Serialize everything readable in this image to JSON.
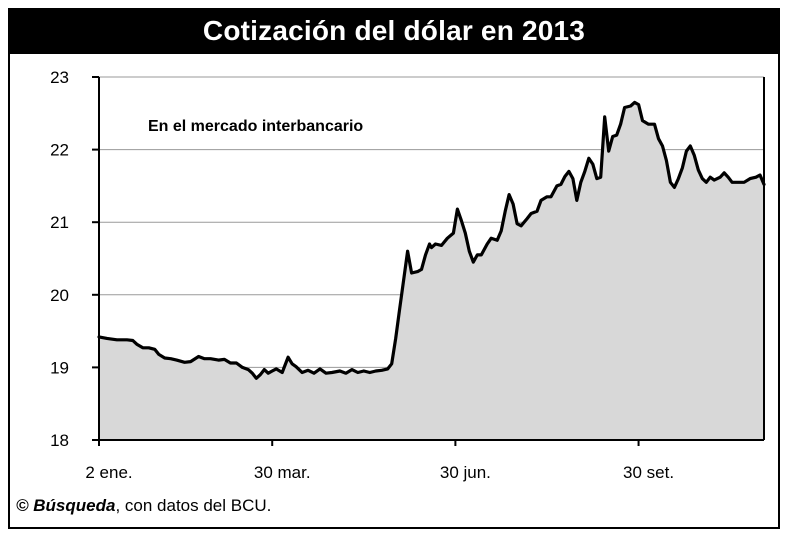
{
  "title": "Cotización del dólar en 2013",
  "annotation": "En el mercado interbancario",
  "credit": {
    "symbol": "©",
    "source": "Búsqueda",
    "rest": ", con datos del BCU."
  },
  "chart_data": {
    "type": "area",
    "title": "Cotización del dólar en 2013",
    "annotation": "En el mercado interbancario",
    "xlabel": "",
    "ylabel": "",
    "ylim": [
      18,
      23
    ],
    "yticks": [
      18,
      19,
      20,
      21,
      22,
      23
    ],
    "xtick_labels": [
      {
        "label": "2 ene.",
        "day": 1
      },
      {
        "label": "30 mar.",
        "day": 88
      },
      {
        "label": "30 jun.",
        "day": 180
      },
      {
        "label": "30 set.",
        "day": 272
      }
    ],
    "xlim": [
      1,
      335
    ],
    "grid": true,
    "fill_color": "#d8d8d8",
    "line_color": "#000000",
    "series": [
      {
        "points": [
          [
            1,
            19.42
          ],
          [
            5,
            19.4
          ],
          [
            10,
            19.38
          ],
          [
            15,
            19.38
          ],
          [
            18,
            19.37
          ],
          [
            20,
            19.32
          ],
          [
            23,
            19.27
          ],
          [
            26,
            19.27
          ],
          [
            29,
            19.25
          ],
          [
            31,
            19.18
          ],
          [
            34,
            19.13
          ],
          [
            37,
            19.12
          ],
          [
            40,
            19.1
          ],
          [
            44,
            19.07
          ],
          [
            47,
            19.08
          ],
          [
            51,
            19.15
          ],
          [
            54,
            19.12
          ],
          [
            57,
            19.12
          ],
          [
            61,
            19.1
          ],
          [
            64,
            19.11
          ],
          [
            67,
            19.06
          ],
          [
            70,
            19.06
          ],
          [
            73,
            19.0
          ],
          [
            76,
            18.97
          ],
          [
            78,
            18.92
          ],
          [
            80,
            18.85
          ],
          [
            82,
            18.9
          ],
          [
            84,
            18.97
          ],
          [
            86,
            18.92
          ],
          [
            88,
            18.95
          ],
          [
            90,
            18.98
          ],
          [
            93,
            18.93
          ],
          [
            96,
            19.14
          ],
          [
            98,
            19.05
          ],
          [
            100,
            19.01
          ],
          [
            103,
            18.93
          ],
          [
            106,
            18.96
          ],
          [
            109,
            18.92
          ],
          [
            112,
            18.98
          ],
          [
            115,
            18.92
          ],
          [
            118,
            18.93
          ],
          [
            122,
            18.95
          ],
          [
            125,
            18.92
          ],
          [
            128,
            18.97
          ],
          [
            131,
            18.93
          ],
          [
            134,
            18.95
          ],
          [
            137,
            18.93
          ],
          [
            140,
            18.95
          ],
          [
            143,
            18.96
          ],
          [
            146,
            18.98
          ],
          [
            148,
            19.05
          ],
          [
            150,
            19.4
          ],
          [
            152,
            19.8
          ],
          [
            154,
            20.2
          ],
          [
            156,
            20.6
          ],
          [
            158,
            20.3
          ],
          [
            161,
            20.32
          ],
          [
            163,
            20.35
          ],
          [
            165,
            20.55
          ],
          [
            167,
            20.7
          ],
          [
            168,
            20.65
          ],
          [
            170,
            20.7
          ],
          [
            173,
            20.68
          ],
          [
            176,
            20.78
          ],
          [
            179,
            20.85
          ],
          [
            181,
            21.18
          ],
          [
            183,
            21.02
          ],
          [
            185,
            20.85
          ],
          [
            187,
            20.6
          ],
          [
            189,
            20.45
          ],
          [
            191,
            20.55
          ],
          [
            193,
            20.55
          ],
          [
            196,
            20.7
          ],
          [
            198,
            20.78
          ],
          [
            201,
            20.75
          ],
          [
            203,
            20.88
          ],
          [
            205,
            21.15
          ],
          [
            207,
            21.38
          ],
          [
            209,
            21.25
          ],
          [
            211,
            20.98
          ],
          [
            213,
            20.95
          ],
          [
            216,
            21.05
          ],
          [
            218,
            21.12
          ],
          [
            221,
            21.15
          ],
          [
            223,
            21.3
          ],
          [
            226,
            21.35
          ],
          [
            228,
            21.35
          ],
          [
            231,
            21.5
          ],
          [
            233,
            21.52
          ],
          [
            235,
            21.63
          ],
          [
            237,
            21.7
          ],
          [
            239,
            21.6
          ],
          [
            241,
            21.3
          ],
          [
            243,
            21.55
          ],
          [
            245,
            21.7
          ],
          [
            247,
            21.88
          ],
          [
            249,
            21.8
          ],
          [
            251,
            21.6
          ],
          [
            253,
            21.62
          ],
          [
            255,
            22.45
          ],
          [
            257,
            21.98
          ],
          [
            259,
            22.18
          ],
          [
            261,
            22.2
          ],
          [
            263,
            22.35
          ],
          [
            265,
            22.58
          ],
          [
            268,
            22.6
          ],
          [
            270,
            22.65
          ],
          [
            272,
            22.62
          ],
          [
            274,
            22.4
          ],
          [
            277,
            22.35
          ],
          [
            280,
            22.35
          ],
          [
            282,
            22.15
          ],
          [
            284,
            22.05
          ],
          [
            286,
            21.85
          ],
          [
            288,
            21.55
          ],
          [
            290,
            21.48
          ],
          [
            292,
            21.6
          ],
          [
            294,
            21.75
          ],
          [
            296,
            21.98
          ],
          [
            298,
            22.05
          ],
          [
            300,
            21.92
          ],
          [
            302,
            21.72
          ],
          [
            304,
            21.6
          ],
          [
            306,
            21.55
          ],
          [
            308,
            21.62
          ],
          [
            310,
            21.58
          ],
          [
            313,
            21.62
          ],
          [
            315,
            21.68
          ],
          [
            317,
            21.62
          ],
          [
            319,
            21.55
          ],
          [
            322,
            21.55
          ],
          [
            325,
            21.55
          ],
          [
            328,
            21.6
          ],
          [
            331,
            21.62
          ],
          [
            333,
            21.65
          ],
          [
            335,
            21.52
          ]
        ]
      }
    ]
  }
}
